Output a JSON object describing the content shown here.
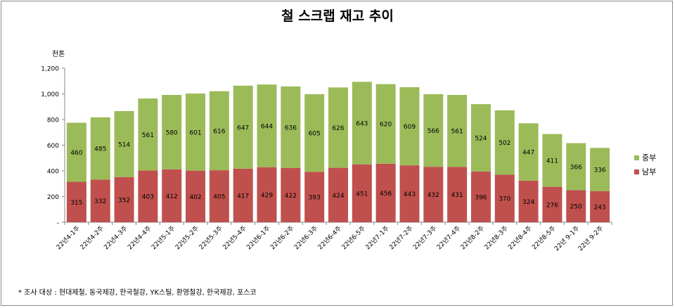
{
  "chart_data": {
    "type": "bar",
    "stacked": true,
    "title": "철 스크랩 재고 추이",
    "ylabel": "천톤",
    "ylim": [
      0,
      1200
    ],
    "yticks": [
      0,
      200,
      400,
      600,
      800,
      1000,
      1200
    ],
    "ytick_labels": [
      "-",
      "200",
      "400",
      "600",
      "800",
      "1,000",
      "1,200"
    ],
    "grid": false,
    "legend_position": "right",
    "categories": [
      "22년4-1주",
      "22년4-2주",
      "22년4-3주",
      "22년4-4주",
      "22년5-1주",
      "22년5-2주",
      "22년5-3주",
      "22년5-4주",
      "22년6-1주",
      "22년6-2주",
      "22년6-3주",
      "22년6-4주",
      "22년6-5주",
      "22년7-1주",
      "22년7-2주",
      "22년7-3주",
      "22년7-4주",
      "22년8-2주",
      "22년8-3주",
      "22년8-4주",
      "22년8-5주",
      "22년 9-1주",
      "22년 9-2주"
    ],
    "series": [
      {
        "name": "남부",
        "color": "#c0504d",
        "values": [
          315,
          332,
          352,
          403,
          412,
          402,
          405,
          417,
          429,
          422,
          393,
          424,
          451,
          456,
          443,
          432,
          431,
          396,
          370,
          324,
          276,
          250,
          243
        ]
      },
      {
        "name": "중부",
        "color": "#9bbb59",
        "values": [
          460,
          485,
          514,
          561,
          580,
          601,
          616,
          647,
          644,
          636,
          605,
          626,
          643,
          620,
          609,
          566,
          561,
          524,
          502,
          447,
          411,
          366,
          336
        ]
      }
    ],
    "legend_order": [
      "중부",
      "남부"
    ]
  },
  "footnote": "* 조사 대상 : 현대제철, 동국제강, 한국철강, YK스틸, 환영철강, 한국제강, 포스코"
}
